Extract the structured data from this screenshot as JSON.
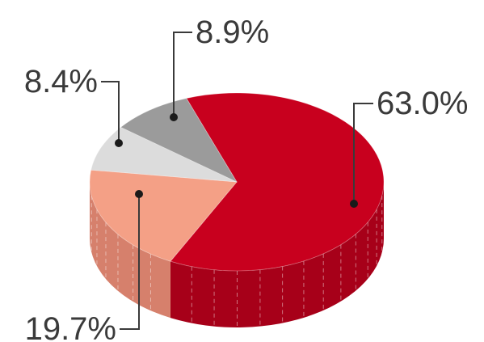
{
  "chart_data": {
    "type": "pie",
    "style": "3d",
    "slices": [
      {
        "value": 63.0,
        "label": "63.0%",
        "color": "#c8001e",
        "side_color": "#a70019",
        "side_seam": true
      },
      {
        "value": 19.7,
        "label": "19.7%",
        "color": "#f4a086",
        "side_color": "#d6806c",
        "side_seam": true
      },
      {
        "value": 8.4,
        "label": "8.4%",
        "color": "#dcdcdc",
        "side_color": "#bdbdbd",
        "side_seam": false
      },
      {
        "value": 8.9,
        "label": "8.9%",
        "color": "#9b9b9b",
        "side_color": "#7d7d7d",
        "side_seam": false
      }
    ]
  }
}
